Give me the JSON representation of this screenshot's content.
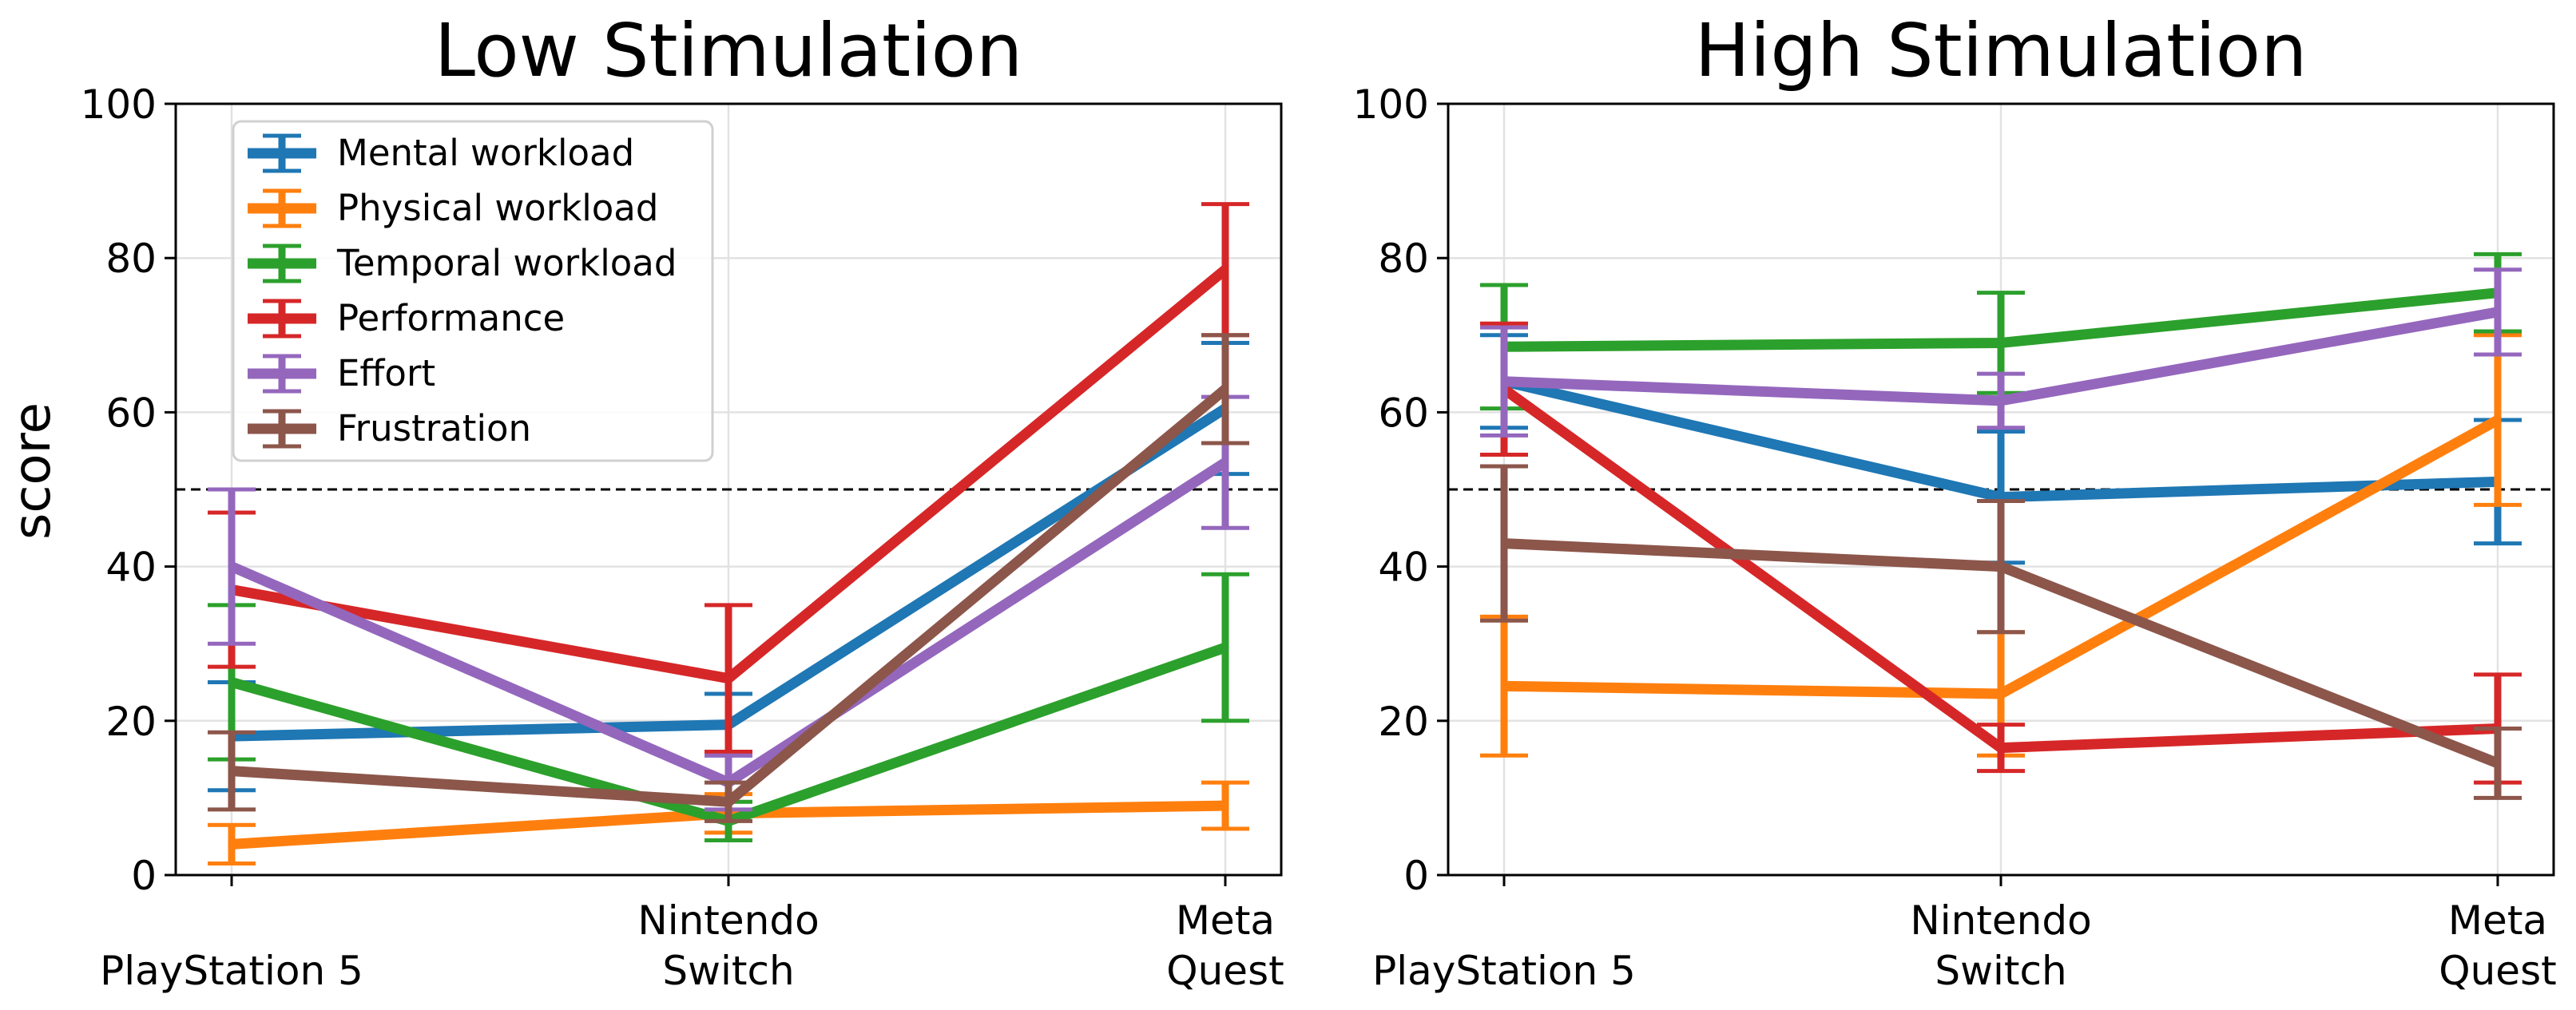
{
  "chart_data": [
    {
      "type": "line",
      "title": "Low Stimulation",
      "xlabel": "",
      "ylabel": "score",
      "ylim": [
        0,
        100
      ],
      "yticks": [
        0,
        20,
        40,
        60,
        80,
        100
      ],
      "grid": true,
      "reference_line": 50,
      "legend_position": "top-left",
      "categories": [
        "PlayStation 5",
        "Nintendo\nSwitch",
        "Meta\nQuest"
      ],
      "series": [
        {
          "name": "Mental workload",
          "color": "#1f77b4",
          "values": [
            18,
            19.5,
            60.5
          ],
          "err": [
            7,
            4,
            8.5
          ]
        },
        {
          "name": "Physical workload",
          "color": "#ff7f0e",
          "values": [
            4,
            8,
            9
          ],
          "err": [
            2.5,
            2.5,
            3
          ]
        },
        {
          "name": "Temporal workload",
          "color": "#2ca02c",
          "values": [
            25,
            7,
            29.5
          ],
          "err": [
            10,
            2.5,
            9.5
          ]
        },
        {
          "name": "Performance",
          "color": "#d62728",
          "values": [
            37,
            25.5,
            78.5
          ],
          "err": [
            10,
            9.5,
            8.5
          ]
        },
        {
          "name": "Effort",
          "color": "#9467bd",
          "values": [
            40,
            12,
            53.5
          ],
          "err": [
            10,
            3.5,
            8.5
          ]
        },
        {
          "name": "Frustration",
          "color": "#8c564b",
          "values": [
            13.5,
            9.5,
            63
          ],
          "err": [
            5,
            2.5,
            7
          ]
        }
      ]
    },
    {
      "type": "line",
      "title": "High Stimulation",
      "xlabel": "",
      "ylabel": "",
      "ylim": [
        0,
        100
      ],
      "yticks": [
        0,
        20,
        40,
        60,
        80,
        100
      ],
      "grid": true,
      "reference_line": 50,
      "categories": [
        "PlayStation 5",
        "Nintendo\nSwitch",
        "Meta\nQuest"
      ],
      "series": [
        {
          "name": "Mental workload",
          "color": "#1f77b4",
          "values": [
            64,
            49,
            51
          ],
          "err": [
            6,
            8.5,
            8
          ]
        },
        {
          "name": "Physical workload",
          "color": "#ff7f0e",
          "values": [
            24.5,
            23.5,
            59
          ],
          "err": [
            9,
            8,
            11
          ]
        },
        {
          "name": "Temporal workload",
          "color": "#2ca02c",
          "values": [
            68.5,
            69,
            75.5
          ],
          "err": [
            8,
            6.5,
            5
          ]
        },
        {
          "name": "Performance",
          "color": "#d62728",
          "values": [
            63,
            16.5,
            19
          ],
          "err": [
            8.5,
            3,
            7
          ]
        },
        {
          "name": "Effort",
          "color": "#9467bd",
          "values": [
            64,
            61.5,
            73
          ],
          "err": [
            7,
            3.5,
            5.5
          ]
        },
        {
          "name": "Frustration",
          "color": "#8c564b",
          "values": [
            43,
            40,
            14.5
          ],
          "err": [
            10,
            8.5,
            4.5
          ]
        }
      ]
    }
  ]
}
